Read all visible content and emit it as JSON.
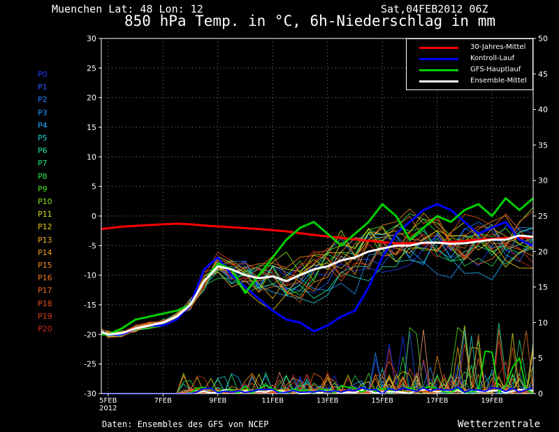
{
  "header": {
    "location": "Muenchen   Lat: 48 Lon: 12",
    "datetime": "Sat,04FEB2012 06Z",
    "title": "850 hPa Temp. in °C, 6h-Niederschlag in mm"
  },
  "footer": {
    "source": "Daten: Ensembles des GFS von NCEP",
    "brand": "Wetterzentrale"
  },
  "ensemble_members": [
    {
      "label": "P0",
      "color": "#1e3cff"
    },
    {
      "label": "P1",
      "color": "#1e5aff"
    },
    {
      "label": "P2",
      "color": "#1e78ff"
    },
    {
      "label": "P3",
      "color": "#1e96ff"
    },
    {
      "label": "P4",
      "color": "#1eb4ff"
    },
    {
      "label": "P5",
      "color": "#1ed2d2"
    },
    {
      "label": "P6",
      "color": "#1ee6a0"
    },
    {
      "label": "P7",
      "color": "#1ee678"
    },
    {
      "label": "P8",
      "color": "#28e650"
    },
    {
      "label": "P9",
      "color": "#50e628"
    },
    {
      "label": "P10",
      "color": "#8ce61e"
    },
    {
      "label": "P11",
      "color": "#dcdc1e"
    },
    {
      "label": "P12",
      "color": "#f0c81e"
    },
    {
      "label": "P13",
      "color": "#f0b41e"
    },
    {
      "label": "P14",
      "color": "#f0a01e"
    },
    {
      "label": "P15",
      "color": "#f08c1e"
    },
    {
      "label": "P16",
      "color": "#f0781e"
    },
    {
      "label": "P17",
      "color": "#f0641e"
    },
    {
      "label": "P18",
      "color": "#e6501e"
    },
    {
      "label": "P19",
      "color": "#dc3c1e"
    },
    {
      "label": "P20",
      "color": "#d2281e"
    }
  ],
  "chart_data": {
    "type": "line",
    "title": "850 hPa Temp. in °C, 6h-Niederschlag in mm",
    "x_ticks": [
      "5FEB\n2012",
      "7FEB",
      "9FEB",
      "11FEB",
      "13FEB",
      "15FEB",
      "17FEB",
      "19FEB"
    ],
    "x_range_days": [
      4.75,
      20.5
    ],
    "y_left": {
      "ylim": [
        -30,
        30
      ],
      "ticks": [
        30,
        25,
        20,
        15,
        10,
        5,
        0,
        -5,
        -10,
        -15,
        -20,
        -25,
        -30
      ]
    },
    "y_right": {
      "ylim": [
        0,
        50
      ],
      "ticks": [
        50,
        45,
        40,
        35,
        30,
        25,
        20,
        15,
        10,
        5,
        0
      ]
    },
    "grid": true,
    "legend_position": "top-right",
    "series": [
      {
        "name": "30-Jahres-Mittel",
        "color": "#ff0000",
        "axis": "left",
        "x": [
          4.75,
          5.5,
          6.25,
          7.0,
          7.5,
          8.0,
          8.75,
          9.5,
          10.5,
          11.5,
          12.5,
          13.5,
          14.5,
          15.5,
          16.5,
          17.5,
          18.5,
          19.5,
          20.5
        ],
        "y": [
          -2.2,
          -1.8,
          -1.6,
          -1.4,
          -1.3,
          -1.4,
          -1.7,
          -1.9,
          -2.2,
          -2.6,
          -3.2,
          -3.7,
          -4.2,
          -4.6,
          -4.6,
          -4.4,
          -4.0,
          -3.7,
          -3.6
        ]
      },
      {
        "name": "Kontroll-Lauf",
        "color": "#0000ff",
        "axis": "left",
        "x": [
          4.75,
          5.0,
          5.5,
          6.0,
          6.5,
          7.0,
          7.5,
          8.0,
          8.5,
          9.0,
          9.5,
          10.0,
          10.5,
          11.0,
          11.5,
          12.0,
          12.5,
          13.0,
          13.5,
          14.0,
          14.5,
          15.0,
          15.5,
          16.0,
          16.5,
          17.0,
          17.5,
          18.0,
          18.5,
          19.0,
          19.5,
          20.0,
          20.5
        ],
        "y": [
          -19.5,
          -20,
          -20,
          -19,
          -18.5,
          -18.5,
          -17.5,
          -15,
          -9,
          -7,
          -10,
          -12,
          -14,
          -16,
          -17.5,
          -18,
          -19.5,
          -18.5,
          -17,
          -16,
          -12,
          -7,
          -3,
          -1,
          1,
          2,
          1,
          -1,
          -3,
          -2,
          -1,
          -4,
          -5
        ]
      },
      {
        "name": "GFS-Hauptlauf",
        "color": "#00d000",
        "axis": "left",
        "x": [
          4.75,
          5.0,
          5.5,
          6.0,
          6.5,
          7.0,
          7.5,
          8.0,
          8.5,
          9.0,
          9.5,
          10.0,
          10.5,
          11.0,
          11.5,
          12.0,
          12.5,
          13.0,
          13.5,
          14.0,
          14.5,
          15.0,
          15.5,
          16.0,
          16.5,
          17.0,
          17.5,
          18.0,
          18.5,
          19.0,
          19.5,
          20.0,
          20.5
        ],
        "y": [
          -20,
          -20,
          -19,
          -17.5,
          -17,
          -16.5,
          -16,
          -15,
          -11,
          -8,
          -9,
          -13,
          -10,
          -7,
          -4,
          -2,
          -1,
          -3,
          -5,
          -3,
          -1,
          2,
          0,
          -4,
          -2,
          0,
          -1,
          1,
          2,
          0,
          3,
          1,
          3
        ]
      },
      {
        "name": "Ensemble-Mittel",
        "color": "#ffffff",
        "axis": "left",
        "x": [
          4.75,
          5.0,
          5.5,
          6.0,
          6.5,
          7.0,
          7.5,
          8.0,
          8.5,
          9.0,
          9.5,
          10.0,
          10.5,
          11.0,
          11.5,
          12.0,
          12.5,
          13.0,
          13.5,
          14.0,
          14.5,
          15.0,
          15.5,
          16.0,
          16.5,
          17.0,
          17.5,
          18.0,
          18.5,
          19.0,
          19.5,
          20.0,
          20.5
        ],
        "y": [
          -19.6,
          -20,
          -19.8,
          -19,
          -18.5,
          -18,
          -17,
          -15,
          -11,
          -8.5,
          -9,
          -10,
          -10.5,
          -10.2,
          -11,
          -10,
          -9,
          -8.5,
          -7.5,
          -7,
          -6,
          -5.5,
          -5,
          -5,
          -4.5,
          -4.5,
          -4.7,
          -4.6,
          -4.3,
          -4,
          -4,
          -3.3,
          -3.5
        ]
      }
    ]
  }
}
